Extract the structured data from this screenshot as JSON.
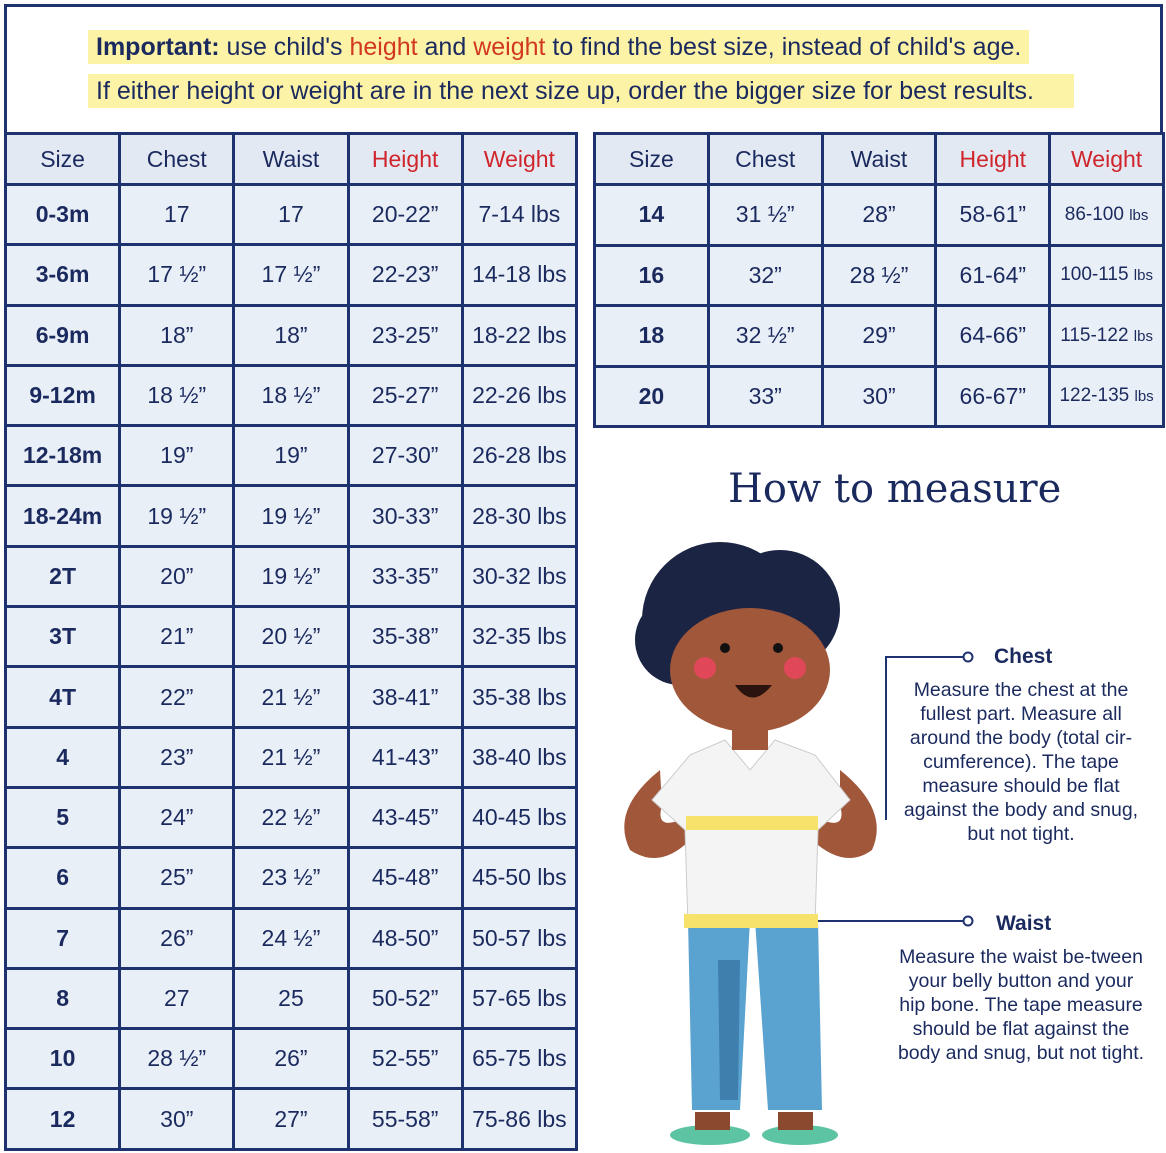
{
  "notice": {
    "line1": {
      "bold": "Important:",
      "t1": " use child's ",
      "h1": "height",
      "t2": " and ",
      "h2": "weight",
      "t3": " to find the best size, instead of child's age."
    },
    "line2": "If either height or weight are in the next size up, order the bigger size for best results."
  },
  "colors": {
    "navy": "#1f3270",
    "red": "#d0252b",
    "highlight": "#fdf3a6",
    "cell": "#e9eff6"
  },
  "table": {
    "headers": [
      "Size",
      "Chest",
      "Waist",
      "Height",
      "Weight"
    ],
    "unit": "lbs",
    "left_rows": [
      [
        "0-3m",
        "17",
        "17",
        "20-22”",
        "7-14 lbs"
      ],
      [
        "3-6m",
        "17 ½”",
        "17 ½”",
        "22-23”",
        "14-18 lbs"
      ],
      [
        "6-9m",
        "18”",
        "18”",
        "23-25”",
        "18-22 lbs"
      ],
      [
        "9-12m",
        "18 ½”",
        "18 ½”",
        "25-27”",
        "22-26 lbs"
      ],
      [
        "12-18m",
        "19”",
        "19”",
        "27-30”",
        "26-28 lbs"
      ],
      [
        "18-24m",
        "19 ½”",
        "19 ½”",
        "30-33”",
        "28-30 lbs"
      ],
      [
        "2T",
        "20”",
        "19 ½”",
        "33-35”",
        "30-32 lbs"
      ],
      [
        "3T",
        "21”",
        "20 ½”",
        "35-38”",
        "32-35 lbs"
      ],
      [
        "4T",
        "22”",
        "21 ½”",
        "38-41”",
        "35-38 lbs"
      ],
      [
        "4",
        "23”",
        "21 ½”",
        "41-43”",
        "38-40 lbs"
      ],
      [
        "5",
        "24”",
        "22 ½”",
        "43-45”",
        "40-45 lbs"
      ],
      [
        "6",
        "25”",
        "23 ½”",
        "45-48”",
        "45-50 lbs"
      ],
      [
        "7",
        "26”",
        "24 ½”",
        "48-50”",
        "50-57 lbs"
      ],
      [
        "8",
        "27",
        "25",
        "50-52”",
        "57-65 lbs"
      ],
      [
        "10",
        "28 ½”",
        "26”",
        "52-55”",
        "65-75 lbs"
      ],
      [
        "12",
        "30”",
        "27”",
        "55-58”",
        "75-86 lbs"
      ]
    ],
    "right_rows": [
      [
        "14",
        "31 ½”",
        "28”",
        "58-61”",
        "86-100"
      ],
      [
        "16",
        "32”",
        "28 ½”",
        "61-64”",
        "100-115"
      ],
      [
        "18",
        "32 ½”",
        "29”",
        "64-66”",
        "115-122"
      ],
      [
        "20",
        "33”",
        "30”",
        "66-67”",
        "122-135"
      ]
    ]
  },
  "measure": {
    "title": "How to measure",
    "chest_label": "Chest",
    "chest_desc": "Measure the chest at the fullest part. Measure all around the body (total cir-cumference). The tape measure should be flat against the body and snug, but not tight.",
    "waist_label": "Waist",
    "waist_desc": "Measure the waist be-tween your belly button and your hip bone. The tape measure should be flat against the body and snug, but not tight."
  }
}
